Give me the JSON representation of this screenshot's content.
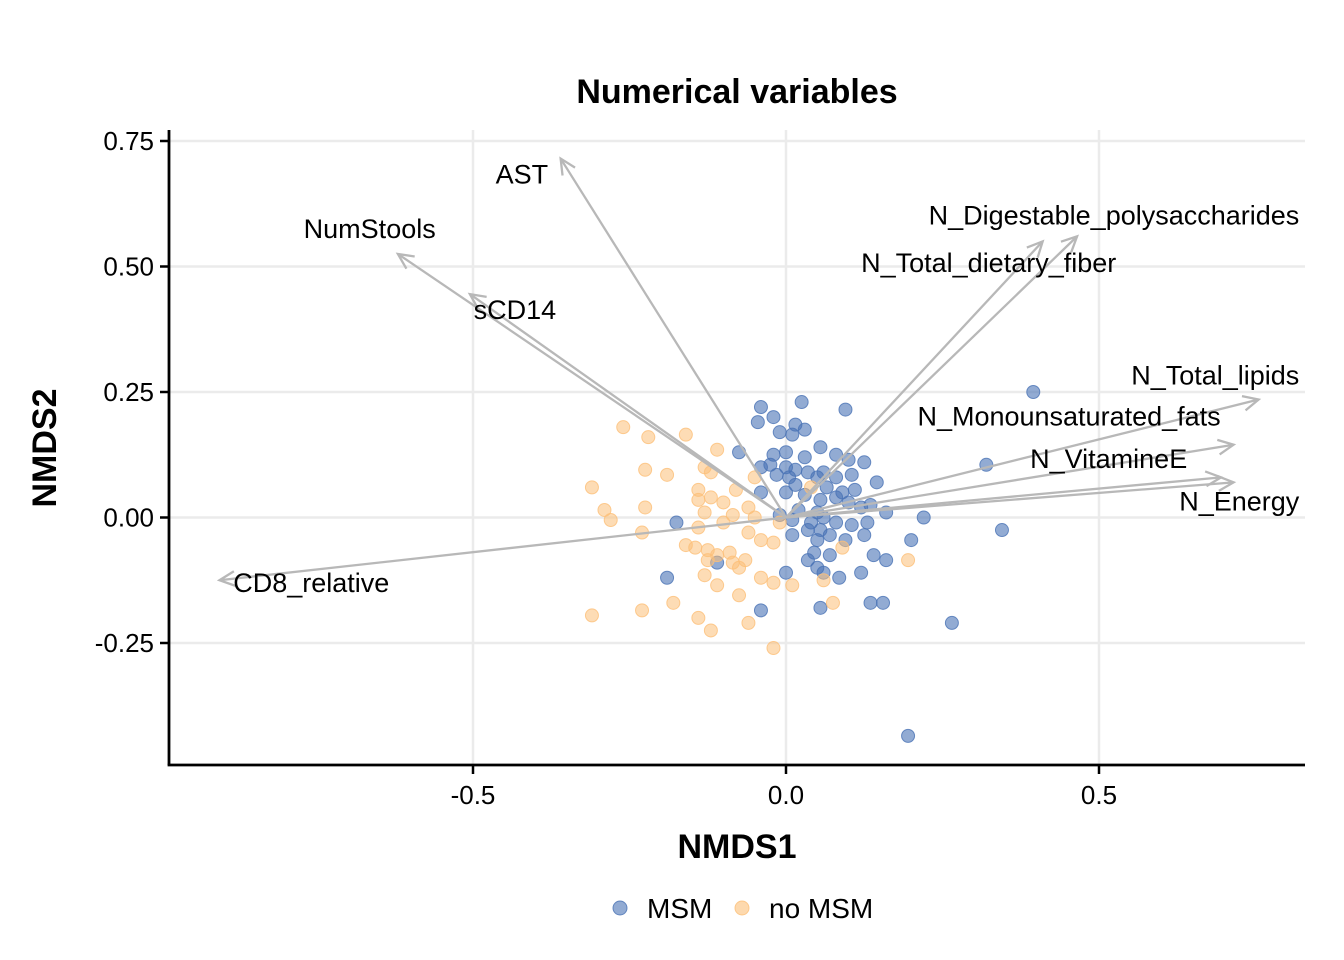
{
  "chart_data": {
    "type": "scatter",
    "title": "Numerical variables",
    "xlabel": "NMDS1",
    "ylabel": "NMDS2",
    "xlim": [
      -1.0,
      0.83
    ],
    "ylim": [
      -0.49,
      0.77
    ],
    "xticks": [
      -0.5,
      0.0,
      0.5
    ],
    "xtick_labels": [
      "-0.5",
      "0.0",
      "0.5"
    ],
    "yticks": [
      0.75,
      0.5,
      0.25,
      0.0,
      -0.25
    ],
    "ytick_labels": [
      "0.75",
      "0.50",
      "0.25",
      "0.00",
      "-0.25"
    ],
    "grid": true,
    "legend_position": "bottom",
    "series": [
      {
        "name": "MSM",
        "color": "#4a73b5",
        "points": [
          [
            0.395,
            0.25
          ],
          [
            0.025,
            0.23
          ],
          [
            0.095,
            0.215
          ],
          [
            -0.04,
            0.22
          ],
          [
            -0.02,
            0.2
          ],
          [
            0.015,
            0.185
          ],
          [
            -0.045,
            0.19
          ],
          [
            0.03,
            0.175
          ],
          [
            -0.01,
            0.17
          ],
          [
            0.01,
            0.165
          ],
          [
            0.055,
            0.14
          ],
          [
            -0.075,
            0.13
          ],
          [
            -0.02,
            0.125
          ],
          [
            0.0,
            0.13
          ],
          [
            0.03,
            0.12
          ],
          [
            0.08,
            0.125
          ],
          [
            0.1,
            0.115
          ],
          [
            0.125,
            0.11
          ],
          [
            -0.025,
            0.105
          ],
          [
            -0.04,
            0.1
          ],
          [
            0.0,
            0.1
          ],
          [
            0.015,
            0.095
          ],
          [
            0.035,
            0.09
          ],
          [
            0.06,
            0.09
          ],
          [
            0.32,
            0.105
          ],
          [
            -0.015,
            0.085
          ],
          [
            0.005,
            0.08
          ],
          [
            0.05,
            0.08
          ],
          [
            0.08,
            0.08
          ],
          [
            0.105,
            0.085
          ],
          [
            0.015,
            0.065
          ],
          [
            0.065,
            0.06
          ],
          [
            0.09,
            0.05
          ],
          [
            0.11,
            0.055
          ],
          [
            -0.04,
            0.05
          ],
          [
            0.0,
            0.05
          ],
          [
            0.03,
            0.045
          ],
          [
            0.145,
            0.07
          ],
          [
            0.055,
            0.035
          ],
          [
            0.08,
            0.04
          ],
          [
            0.1,
            0.03
          ],
          [
            0.12,
            0.02
          ],
          [
            0.135,
            0.025
          ],
          [
            0.16,
            0.01
          ],
          [
            0.22,
            0.0
          ],
          [
            0.02,
            0.015
          ],
          [
            0.05,
            0.01
          ],
          [
            -0.01,
            0.005
          ],
          [
            0.01,
            -0.005
          ],
          [
            0.04,
            -0.01
          ],
          [
            0.06,
            0.0
          ],
          [
            0.08,
            -0.01
          ],
          [
            0.105,
            -0.015
          ],
          [
            0.13,
            -0.01
          ],
          [
            0.345,
            -0.025
          ],
          [
            0.035,
            -0.025
          ],
          [
            0.055,
            -0.025
          ],
          [
            -0.175,
            -0.01
          ],
          [
            0.01,
            -0.035
          ],
          [
            0.05,
            -0.045
          ],
          [
            0.07,
            -0.035
          ],
          [
            0.095,
            -0.045
          ],
          [
            0.125,
            -0.035
          ],
          [
            0.2,
            -0.045
          ],
          [
            -0.11,
            -0.09
          ],
          [
            0.045,
            -0.07
          ],
          [
            0.07,
            -0.075
          ],
          [
            0.035,
            -0.085
          ],
          [
            0.05,
            -0.1
          ],
          [
            0.14,
            -0.075
          ],
          [
            0.16,
            -0.085
          ],
          [
            0.0,
            -0.11
          ],
          [
            0.06,
            -0.11
          ],
          [
            0.085,
            -0.12
          ],
          [
            0.12,
            -0.11
          ],
          [
            -0.19,
            -0.12
          ],
          [
            -0.04,
            -0.185
          ],
          [
            0.055,
            -0.18
          ],
          [
            0.135,
            -0.17
          ],
          [
            0.155,
            -0.17
          ],
          [
            0.265,
            -0.21
          ],
          [
            0.195,
            -0.435
          ]
        ]
      },
      {
        "name": "no MSM",
        "color": "#fcbf78",
        "points": [
          [
            -0.26,
            0.18
          ],
          [
            -0.22,
            0.16
          ],
          [
            -0.16,
            0.165
          ],
          [
            -0.11,
            0.135
          ],
          [
            -0.13,
            0.1
          ],
          [
            -0.225,
            0.095
          ],
          [
            -0.19,
            0.085
          ],
          [
            -0.12,
            0.09
          ],
          [
            -0.05,
            0.08
          ],
          [
            0.04,
            0.06
          ],
          [
            -0.31,
            0.06
          ],
          [
            -0.14,
            0.055
          ],
          [
            -0.08,
            0.055
          ],
          [
            -0.12,
            0.04
          ],
          [
            -0.29,
            0.015
          ],
          [
            -0.225,
            0.02
          ],
          [
            -0.14,
            0.035
          ],
          [
            -0.1,
            0.03
          ],
          [
            -0.06,
            0.02
          ],
          [
            -0.28,
            -0.005
          ],
          [
            -0.13,
            0.01
          ],
          [
            -0.085,
            0.005
          ],
          [
            -0.05,
            0.0
          ],
          [
            -0.01,
            -0.01
          ],
          [
            -0.23,
            -0.03
          ],
          [
            -0.14,
            -0.02
          ],
          [
            -0.1,
            -0.01
          ],
          [
            -0.06,
            -0.03
          ],
          [
            -0.04,
            -0.045
          ],
          [
            -0.02,
            -0.05
          ],
          [
            -0.145,
            -0.06
          ],
          [
            -0.125,
            -0.065
          ],
          [
            -0.09,
            -0.07
          ],
          [
            -0.16,
            -0.055
          ],
          [
            -0.11,
            -0.075
          ],
          [
            -0.065,
            -0.085
          ],
          [
            -0.085,
            -0.09
          ],
          [
            -0.125,
            -0.085
          ],
          [
            -0.075,
            -0.1
          ],
          [
            -0.13,
            -0.115
          ],
          [
            -0.04,
            -0.12
          ],
          [
            -0.02,
            -0.13
          ],
          [
            0.01,
            -0.135
          ],
          [
            0.06,
            -0.125
          ],
          [
            0.09,
            -0.06
          ],
          [
            0.195,
            -0.085
          ],
          [
            -0.11,
            -0.135
          ],
          [
            -0.075,
            -0.155
          ],
          [
            -0.18,
            -0.17
          ],
          [
            -0.23,
            -0.185
          ],
          [
            -0.31,
            -0.195
          ],
          [
            -0.14,
            -0.2
          ],
          [
            -0.06,
            -0.21
          ],
          [
            -0.12,
            -0.225
          ],
          [
            0.075,
            -0.17
          ],
          [
            -0.02,
            -0.26
          ]
        ]
      }
    ],
    "vectors": [
      {
        "name": "AST",
        "x": -0.36,
        "y": 0.715,
        "label_x": -0.422,
        "label_y": 0.665,
        "anchor": "middle"
      },
      {
        "name": "NumStools",
        "x": -0.62,
        "y": 0.525,
        "label_x": -0.665,
        "label_y": 0.557,
        "anchor": "middle"
      },
      {
        "name": "sCD14",
        "x": -0.505,
        "y": 0.445,
        "label_x": -0.433,
        "label_y": 0.395,
        "anchor": "middle"
      },
      {
        "name": "N_Digestable_polysaccharides",
        "x": 0.465,
        "y": 0.56,
        "label_x": 0.82,
        "label_y": 0.584,
        "anchor": "end"
      },
      {
        "name": "N_Total_dietary_fiber",
        "x": 0.41,
        "y": 0.55,
        "label_x": 0.12,
        "label_y": 0.489,
        "anchor": "start"
      },
      {
        "name": "N_Total_lipids",
        "x": 0.755,
        "y": 0.235,
        "label_x": 0.82,
        "label_y": 0.265,
        "anchor": "end"
      },
      {
        "name": "N_Monounsaturated_fats",
        "x": 0.715,
        "y": 0.145,
        "label_x": 0.21,
        "label_y": 0.183,
        "anchor": "start"
      },
      {
        "name": "N_VitamineE",
        "x": 0.695,
        "y": 0.08,
        "label_x": 0.39,
        "label_y": 0.099,
        "anchor": "start"
      },
      {
        "name": "N_Energy",
        "x": 0.715,
        "y": 0.07,
        "label_x": 0.82,
        "label_y": 0.014,
        "anchor": "end"
      },
      {
        "name": "CD8_relative",
        "x": -0.905,
        "y": -0.125,
        "label_x": -0.883,
        "label_y": -0.148,
        "anchor": "start"
      }
    ]
  }
}
